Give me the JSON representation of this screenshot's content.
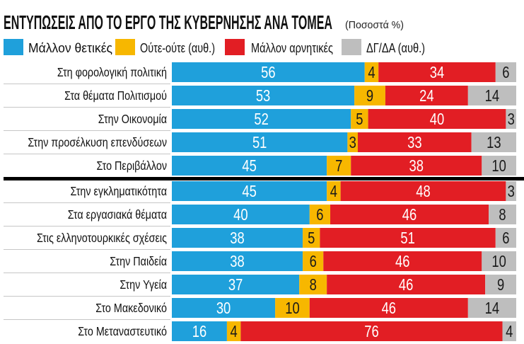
{
  "chart_data": {
    "type": "bar",
    "orientation": "horizontal",
    "stacked": true,
    "title": "ΕΝΤΥΠΩΣΕΙΣ ΑΠΟ ΤΟ ΕΡΓΟ ΤΗΣ ΚΥΒΕΡΝΗΣΗΣ ΑΝΑ ΤΟΜΕΑ",
    "subtitle": "(Ποσοστά %)",
    "xlim": [
      0,
      100
    ],
    "grid": false,
    "legend": "top",
    "categories": [
      "Στη φορολογική πολιτική",
      "Στα θέματα Πολιτισμού",
      "Στην Οικονομία",
      "Στην προσέλκυση επενδύσεων",
      "Στο Περιβάλλον",
      "Στην εγκληματικότητα",
      "Στα εργασιακά θέματα",
      "Στις ελληνοτουρκικές σχέσεις",
      "Στην Παιδεία",
      "Στην Υγεία",
      "Στο Μακεδονικό",
      "Στο Μεταναστευτικό"
    ],
    "series": [
      {
        "name": "Μάλλον θετικές",
        "color": "#1fa0db",
        "text_color": "#ffffff",
        "values": [
          56,
          53,
          52,
          51,
          45,
          45,
          40,
          38,
          38,
          37,
          30,
          16
        ]
      },
      {
        "name": "Ούτε-ούτε (αυθ.)",
        "color": "#f7b700",
        "text_color": "#1a1a1a",
        "values": [
          4,
          9,
          5,
          3,
          7,
          4,
          6,
          5,
          6,
          8,
          10,
          4
        ]
      },
      {
        "name": "Μάλλον αρνητικές",
        "color": "#e21e24",
        "text_color": "#ffffff",
        "values": [
          34,
          24,
          40,
          33,
          38,
          48,
          46,
          51,
          46,
          46,
          46,
          76
        ]
      },
      {
        "name": "ΔΓ/ΔΑ (αυθ.)",
        "color": "#bebebe",
        "text_color": "#1a1a1a",
        "values": [
          6,
          14,
          3,
          13,
          10,
          3,
          8,
          6,
          10,
          9,
          14,
          4
        ]
      }
    ]
  }
}
